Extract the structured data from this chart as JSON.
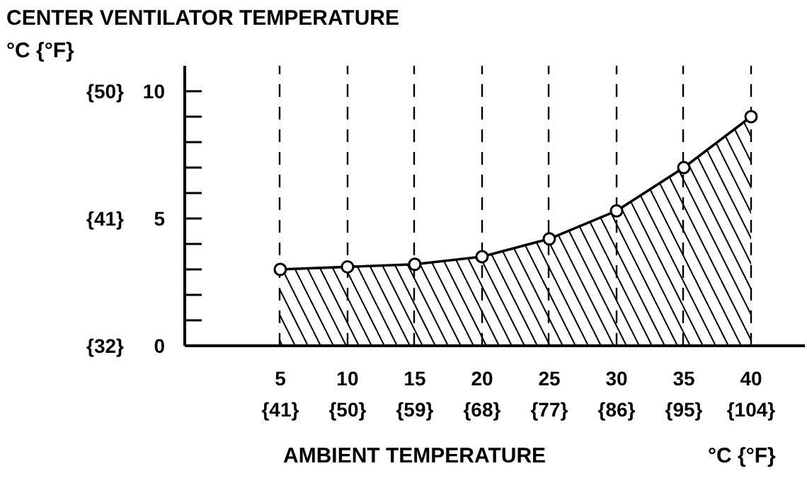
{
  "chart_data": {
    "type": "area",
    "x": [
      5,
      10,
      15,
      20,
      25,
      30,
      35,
      40
    ],
    "series": [
      {
        "color": "#000000",
        "values": [
          3.0,
          3.1,
          3.2,
          3.5,
          4.2,
          5.3,
          7.0,
          9.0
        ]
      }
    ],
    "xlim": [
      -2.1,
      44
    ],
    "ylim": [
      0,
      11
    ],
    "xticks": [
      5,
      10,
      15,
      20,
      25,
      30,
      35,
      40
    ],
    "x2lim": [
      28.22,
      111.2
    ],
    "x2ticks": [
      {
        "value": 41,
        "label": "{41}"
      },
      {
        "value": 50,
        "label": "{50}"
      },
      {
        "value": 59,
        "label": "{59}"
      },
      {
        "value": 68,
        "label": "{68}"
      },
      {
        "value": 77,
        "label": "{77}"
      },
      {
        "value": 86,
        "label": "{86}"
      },
      {
        "value": 95,
        "label": "{95}"
      },
      {
        "value": 104,
        "label": "{104}"
      }
    ],
    "yticks": [
      0,
      {
        "value": 1,
        "label": null
      },
      {
        "value": 2,
        "label": null
      },
      {
        "value": 3,
        "label": null
      },
      {
        "value": 4,
        "label": null
      },
      5,
      {
        "value": 6,
        "label": null
      },
      {
        "value": 7,
        "label": null
      },
      {
        "value": 8,
        "label": null
      },
      {
        "value": 9,
        "label": null
      },
      10
    ],
    "y2lim": [
      32,
      51.8
    ],
    "y2ticks": [
      {
        "value": 32,
        "label": "{32}"
      },
      {
        "value": 41,
        "label": "{41}"
      },
      {
        "value": 50,
        "label": "{50}"
      }
    ],
    "ylabel": "CENTER VENTILATOR TEMPERATURE",
    "xlabel": "AMBIENT TEMPERATURE",
    "annotations": [
      "°C {°F}",
      "°C {°F}"
    ],
    "grid": "x",
    "line_style": "solid",
    "marker": "circle"
  }
}
